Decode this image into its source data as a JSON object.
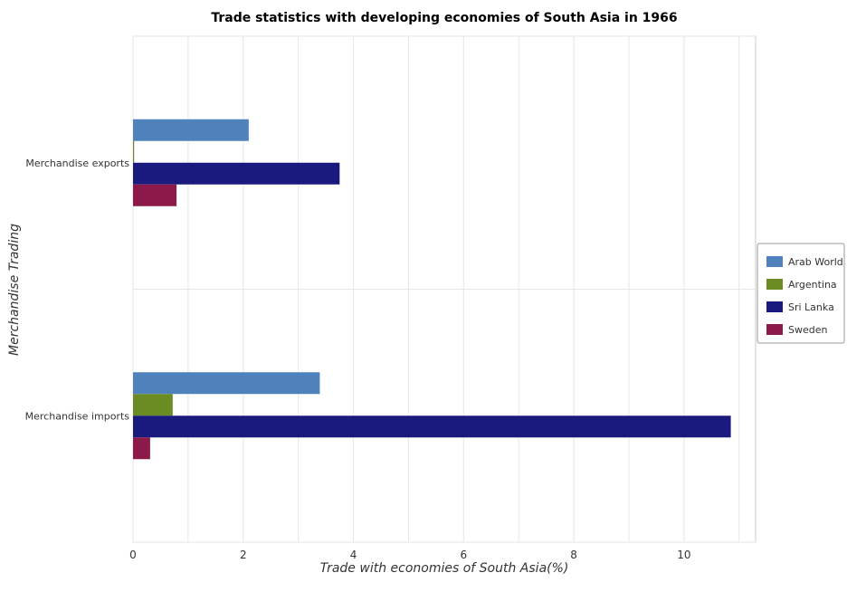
{
  "chart_data": {
    "type": "bar",
    "orientation": "horizontal",
    "title": "Trade statistics with developing economies of South Asia in 1966",
    "xlabel": "Trade with economies of South Asia(%)",
    "ylabel": "Merchandise Trading",
    "xlim": [
      0,
      11.3
    ],
    "xticks": [
      0,
      2,
      4,
      6,
      8,
      10
    ],
    "grid": true,
    "legend_position": "right",
    "categories": [
      "Merchandise exports",
      "Merchandise imports"
    ],
    "series": [
      {
        "name": "Arab World",
        "color": "#4f81bd",
        "values": [
          2.1,
          3.39
        ]
      },
      {
        "name": "Argentina",
        "color": "#6b8c23",
        "values": [
          0.02,
          0.72
        ]
      },
      {
        "name": "Sri Lanka",
        "color": "#1a1a7e",
        "values": [
          3.75,
          10.85
        ]
      },
      {
        "name": "Sweden",
        "color": "#8b1a4a",
        "values": [
          0.79,
          0.31
        ]
      }
    ]
  }
}
